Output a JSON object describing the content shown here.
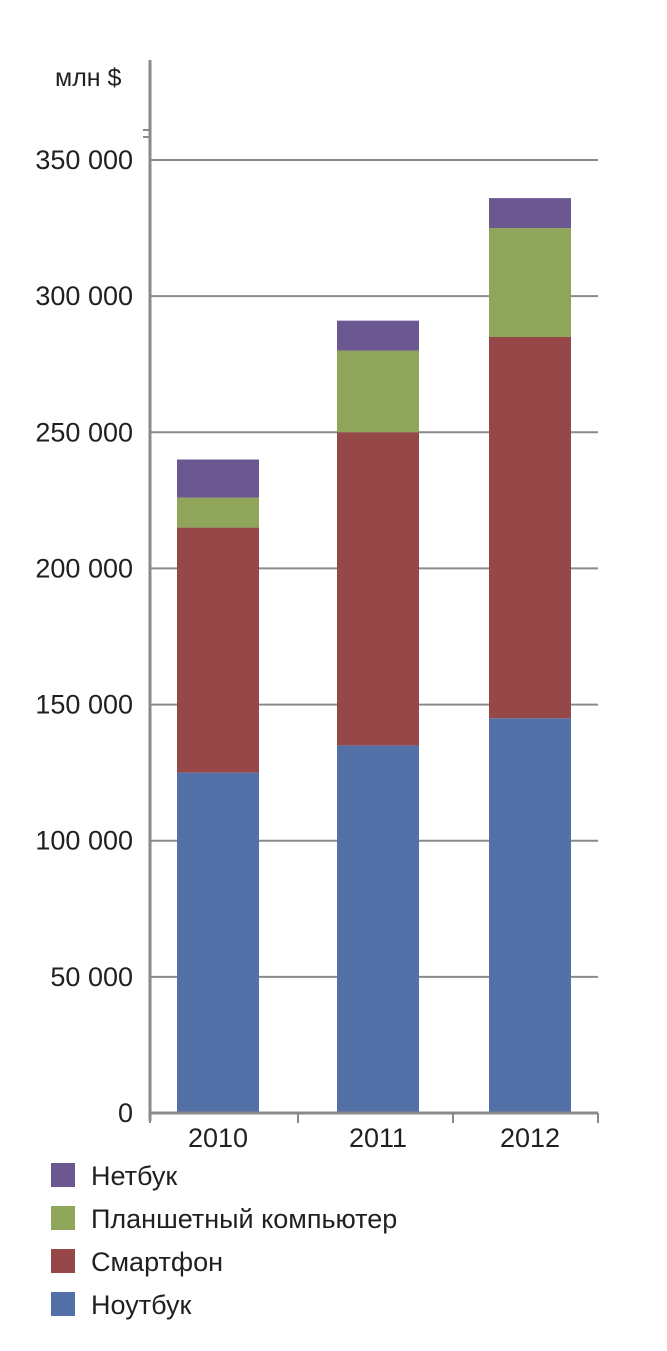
{
  "chart_data": {
    "type": "bar",
    "stacked": true,
    "title": "",
    "xlabel": "",
    "ylabel": "млн $",
    "categories": [
      "2010",
      "2011",
      "2012"
    ],
    "series": [
      {
        "name": "Ноутбук",
        "color": "#5470a8",
        "values": [
          125000,
          135000,
          145000
        ]
      },
      {
        "name": "Смартфон",
        "color": "#964848",
        "values": [
          90000,
          115000,
          140000
        ]
      },
      {
        "name": "Планшетный компьютер",
        "color": "#8fa55a",
        "values": [
          11000,
          30000,
          40000
        ]
      },
      {
        "name": "Нетбук",
        "color": "#6b5890",
        "values": [
          14000,
          11000,
          11000
        ]
      }
    ],
    "legend_order": [
      "Нетбук",
      "Планшетный компьютер",
      "Смартфон",
      "Ноутбук"
    ],
    "yticks": [
      "0",
      "50 000",
      "100 000",
      "150 000",
      "200 000",
      "250 000",
      "300 000",
      "350 000"
    ],
    "ylim": [
      0,
      350000
    ],
    "grid": true,
    "legend_position": "bottom-left"
  }
}
